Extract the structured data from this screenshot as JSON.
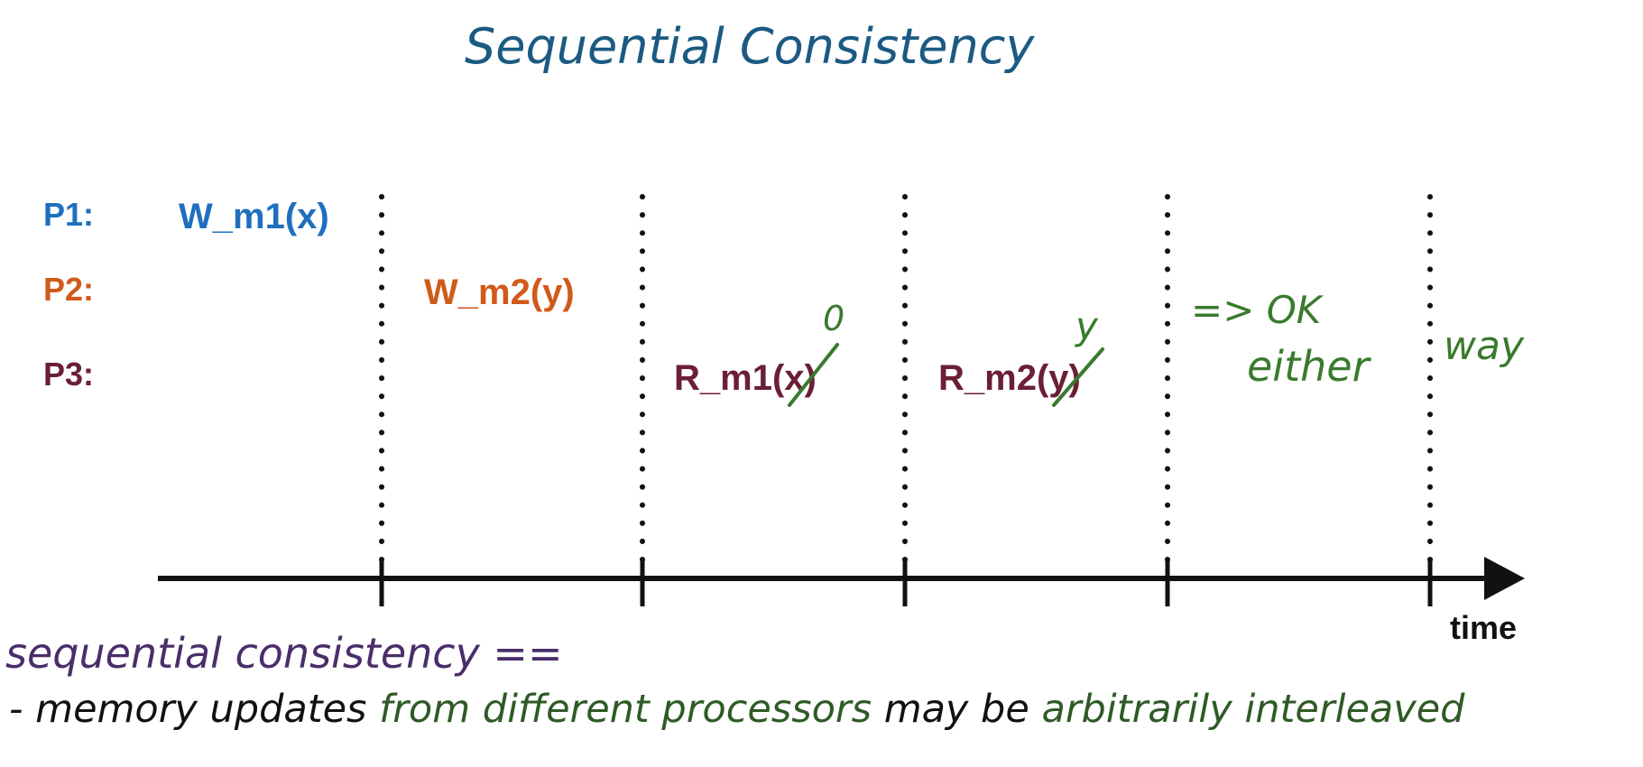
{
  "title": "Sequential Consistency",
  "processes": [
    {
      "label": "P1:",
      "color": "#1f6fbf"
    },
    {
      "label": "P2:",
      "color": "#d05a1a"
    },
    {
      "label": "P3:",
      "color": "#6b1f35"
    }
  ],
  "operations": {
    "p1_write": "W_m1(x)",
    "p2_write": "W_m2(y)",
    "p3_read1_prefix": "R_m1(",
    "p3_read1_var": "x",
    "p3_read1_suffix": ")",
    "p3_read1_value": "0",
    "p3_read2_prefix": "R_m2(",
    "p3_read2_var": "y",
    "p3_read2_suffix": ")",
    "p3_read2_value": "y"
  },
  "note": {
    "line1": "=> OK",
    "line2": "either",
    "line3": "way"
  },
  "axis": {
    "label": "time"
  },
  "definition": {
    "term": "sequential consistency ==",
    "bullet_prefix": "- memory updates",
    "from_processors": "from different processors",
    "may_be": "may be",
    "interleaved": "arbitrarily interleaved"
  },
  "colors": {
    "title": "#1b5a82",
    "note": "#3a7a2e",
    "term": "#4a2e6a",
    "ink": "#111111",
    "green_ink": "#2f5a26"
  }
}
